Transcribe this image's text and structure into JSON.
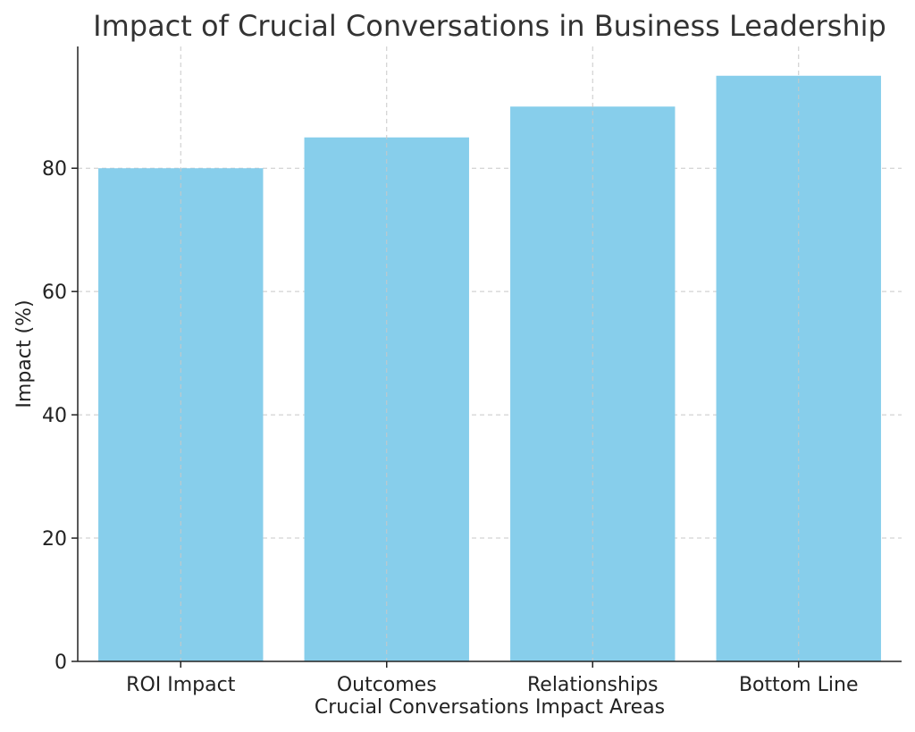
{
  "chart_data": {
    "type": "bar",
    "title": "Impact of Crucial Conversations in Business Leadership",
    "xlabel": "Crucial Conversations Impact Areas",
    "ylabel": "Impact (%)",
    "categories": [
      "ROI Impact",
      "Outcomes",
      "Relationships",
      "Bottom Line"
    ],
    "values": [
      80,
      85,
      90,
      95
    ],
    "ylim": [
      0,
      99.75
    ],
    "yticks": [
      0,
      20,
      40,
      60,
      80
    ],
    "grid": true,
    "bar_color": "#87CEEB"
  }
}
